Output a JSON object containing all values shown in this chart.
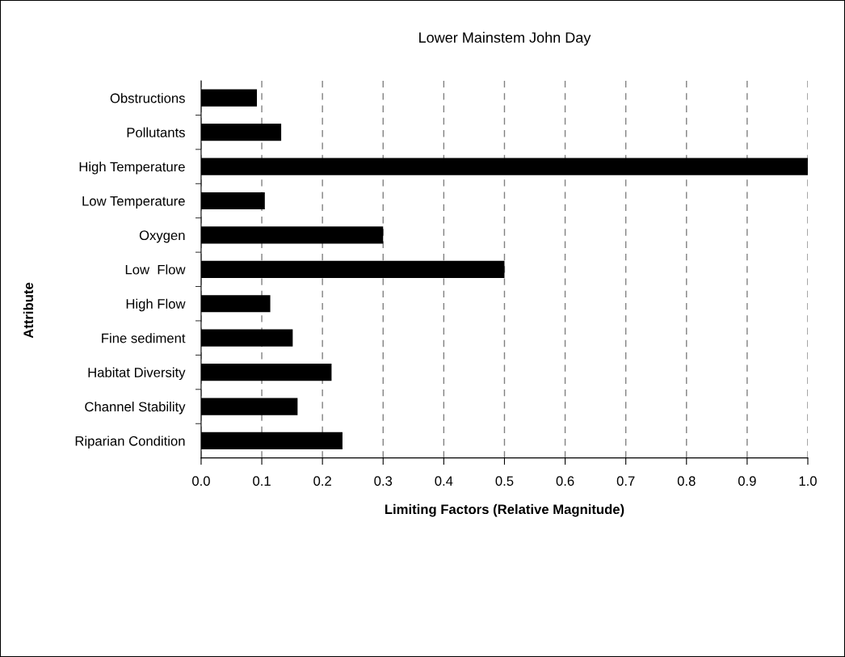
{
  "chart_data": {
    "type": "bar",
    "orientation": "horizontal",
    "title": "Lower Mainstem John Day",
    "xlabel": "Limiting Factors (Relative Magnitude)",
    "ylabel": "Attribute",
    "categories": [
      "Obstructions",
      "Pollutants",
      "High Temperature",
      "Low Temperature",
      "Oxygen",
      "Low  Flow",
      "High Flow",
      "Fine sediment",
      "Habitat Diversity",
      "Channel Stability",
      "Riparian Condition"
    ],
    "values": [
      0.092,
      0.132,
      1.0,
      0.105,
      0.3,
      0.5,
      0.114,
      0.151,
      0.215,
      0.159,
      0.233
    ],
    "color": "#000000",
    "xlim": [
      0,
      1.0
    ],
    "xticks": [
      {
        "value": 0,
        "label": "0.0"
      },
      {
        "value": 0.1,
        "label": "0.1"
      },
      {
        "value": 0.2,
        "label": "0.2"
      },
      {
        "value": 0.3,
        "label": "0.3"
      },
      {
        "value": 0.4,
        "label": "0.4"
      },
      {
        "value": 0.5,
        "label": "0.5"
      },
      {
        "value": 0.6,
        "label": "0.6"
      },
      {
        "value": 0.7,
        "label": "0.7"
      },
      {
        "value": 0.8,
        "label": "0.8"
      },
      {
        "value": 0.9,
        "label": "0.9"
      },
      {
        "value": 1.0,
        "label": "1.0"
      }
    ],
    "grid": "x"
  }
}
